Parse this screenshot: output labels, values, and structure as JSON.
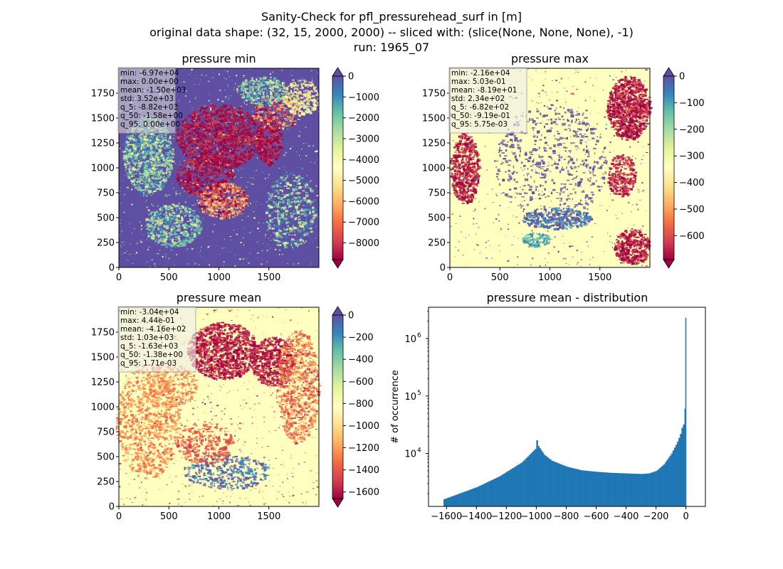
{
  "figure": {
    "title_lines": [
      "Sanity-Check for pfl_pressurehead_surf in [m]",
      "original data shape: (32, 15, 2000, 2000) -- sliced with: (slice(None, None, None), -1)",
      "run: 1965_07"
    ]
  },
  "colors": {
    "spectral_stops": [
      "#9e0142",
      "#d53e4f",
      "#f46d43",
      "#fdae61",
      "#fee08b",
      "#ffffbf",
      "#e6f598",
      "#abdda4",
      "#66c2a5",
      "#3288bd",
      "#5e4fa2"
    ],
    "histogram_bar": "#1f77b4"
  },
  "chart_data": [
    {
      "type": "heatmap",
      "id": "min",
      "title": "pressure min",
      "xlim": [
        0,
        2000
      ],
      "ylim": [
        0,
        2000
      ],
      "xticks": [
        "0",
        "500",
        "1000",
        "1500"
      ],
      "yticks": [
        "0",
        "250",
        "500",
        "750",
        "1000",
        "1250",
        "1500",
        "1750"
      ],
      "colorbar": {
        "vmin": -8800,
        "vmax": 0,
        "ticks": [
          "0",
          "−1000",
          "−2000",
          "−3000",
          "−4000",
          "−5000",
          "−6000",
          "−7000",
          "−8000"
        ],
        "tick_values": [
          0,
          -1000,
          -2000,
          -3000,
          -4000,
          -5000,
          -6000,
          -7000,
          -8000
        ],
        "extend": "both"
      },
      "stats": [
        "min: -6.97e+04",
        "max: 0.00e+00",
        "mean: -1.50e+03",
        "std: 3.52e+03",
        "q_5: -8.82e+03",
        "q_50: -1.58e+00",
        "q_95: 0.00e+00"
      ]
    },
    {
      "type": "heatmap",
      "id": "max",
      "title": "pressure max",
      "xlim": [
        0,
        2000
      ],
      "ylim": [
        0,
        2000
      ],
      "xticks": [
        "0",
        "500",
        "1000",
        "1500"
      ],
      "yticks": [
        "0",
        "250",
        "500",
        "750",
        "1000",
        "1250",
        "1500",
        "1750"
      ],
      "colorbar": {
        "vmin": -690,
        "vmax": 0,
        "ticks": [
          "0",
          "−100",
          "−200",
          "−300",
          "−400",
          "−500",
          "−600"
        ],
        "tick_values": [
          0,
          -100,
          -200,
          -300,
          -400,
          -500,
          -600
        ],
        "extend": "both"
      },
      "stats": [
        "min: -2.16e+04",
        "max: 5.03e-01",
        "mean: -8.19e+01",
        "std: 2.34e+02",
        "q_5: -6.82e+02",
        "q_50: -9.19e-01",
        "q_95: 5.75e-03"
      ]
    },
    {
      "type": "heatmap",
      "id": "mean",
      "title": "pressure mean",
      "xlim": [
        0,
        2000
      ],
      "ylim": [
        0,
        2000
      ],
      "xticks": [
        "0",
        "500",
        "1000",
        "1500"
      ],
      "yticks": [
        "0",
        "250",
        "500",
        "750",
        "1000",
        "1250",
        "1500",
        "1750"
      ],
      "colorbar": {
        "vmin": -1660,
        "vmax": 0,
        "ticks": [
          "0",
          "−200",
          "−400",
          "−600",
          "−800",
          "−1000",
          "−1200",
          "−1400",
          "−1600"
        ],
        "tick_values": [
          0,
          -200,
          -400,
          -600,
          -800,
          -1000,
          -1200,
          -1400,
          -1600
        ],
        "extend": "both"
      },
      "stats": [
        "min: -3.04e+04",
        "max: 4.44e-01",
        "mean: -4.16e+02",
        "std: 1.03e+03",
        "q_5: -1.63e+03",
        "q_50: -1.38e+00",
        "q_95: 1.71e-03"
      ]
    },
    {
      "type": "bar",
      "id": "hist",
      "title": "pressure mean - distribution",
      "ylabel": "# of occurrence",
      "yscale": "log",
      "xlim": [
        -1720,
        130
      ],
      "ylim": [
        1200,
        3500000
      ],
      "xticks": [
        "−1600",
        "−1400",
        "−1200",
        "−1000",
        "−800",
        "−600",
        "−400",
        "−200",
        "0"
      ],
      "xtick_values": [
        -1600,
        -1400,
        -1200,
        -1000,
        -800,
        -600,
        -400,
        -200,
        0
      ],
      "yticks": [
        "10",
        "10",
        "10"
      ],
      "ytick_exponents": [
        "4",
        "5",
        "6"
      ],
      "ytick_values": [
        10000,
        100000,
        1000000
      ],
      "bin_width": 10,
      "bins_start": [
        -1620,
        -1400,
        -1250,
        -1100,
        -1010,
        -1000,
        -990,
        -950,
        -900,
        -800,
        -700,
        -600,
        -500,
        -400,
        -300,
        -250,
        -200,
        -150,
        -100,
        -60,
        -40,
        -30,
        -20,
        -10,
        0
      ],
      "counts": [
        1600,
        2600,
        4000,
        7000,
        12000,
        17000,
        13500,
        9500,
        7500,
        5900,
        5100,
        4800,
        4600,
        4500,
        4400,
        4500,
        5000,
        6500,
        10000,
        16000,
        22000,
        28000,
        32000,
        60000,
        2300000
      ]
    }
  ]
}
